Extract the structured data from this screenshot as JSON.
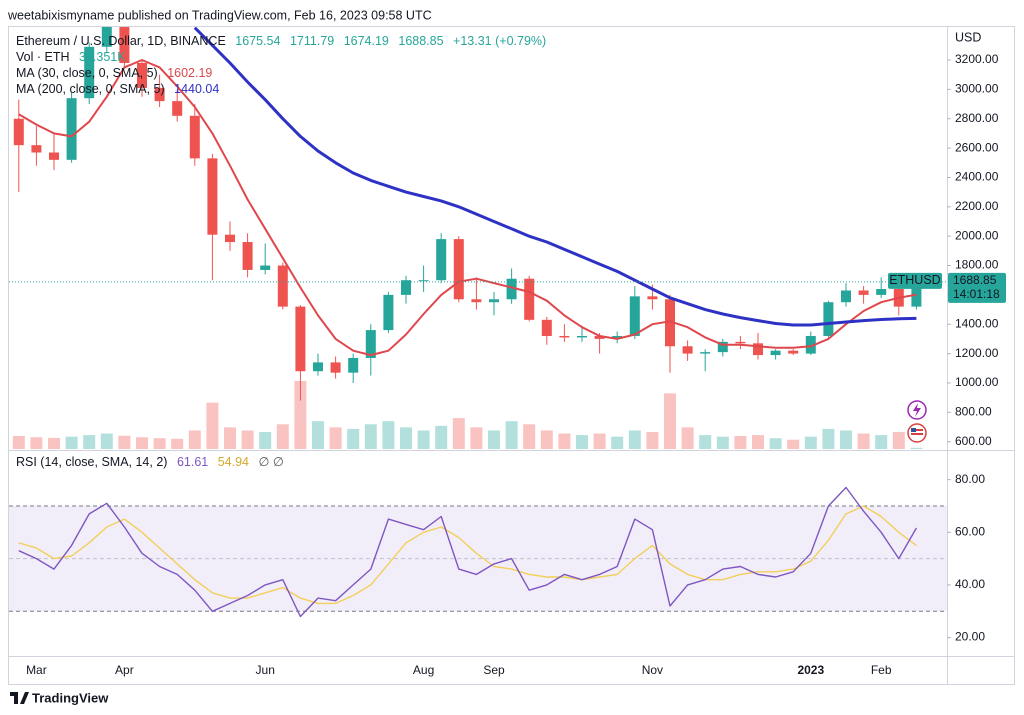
{
  "header": {
    "publisher": "weetabixismyname published on TradingView.com, Feb 16, 2023 09:58 UTC"
  },
  "footer": {
    "brand": "TradingView"
  },
  "chart_data": {
    "type": "candlestick",
    "title": "Ethereum / U.S. Dollar, 1D, BINANCE",
    "quote": {
      "open": 1675.54,
      "high": 1711.79,
      "low": 1674.19,
      "close": 1688.85,
      "change_label": "+13.31 (+0.79%)"
    },
    "axis_unit": "USD",
    "categories": [
      null,
      "Mar",
      null,
      null,
      null,
      null,
      "Apr",
      null,
      null,
      null,
      null,
      null,
      null,
      null,
      "Jun",
      null,
      null,
      null,
      null,
      null,
      null,
      null,
      null,
      "Aug",
      null,
      null,
      null,
      "Sep",
      null,
      null,
      null,
      null,
      null,
      null,
      null,
      null,
      "Nov",
      null,
      null,
      null,
      null,
      null,
      null,
      null,
      null,
      "2023",
      null,
      null,
      null,
      "Feb",
      null,
      null
    ],
    "open": [
      2800,
      2620,
      2570,
      2520,
      2940,
      3290,
      3450,
      3180,
      3010,
      2920,
      2820,
      2530,
      2010,
      1960,
      1770,
      1800,
      1520,
      1080,
      1140,
      1070,
      1170,
      1360,
      1600,
      1700,
      1700,
      1980,
      1570,
      1550,
      1570,
      1710,
      1430,
      1320,
      1310,
      1320,
      1300,
      1320,
      1590,
      1570,
      1250,
      1200,
      1210,
      1280,
      1270,
      1190,
      1220,
      1200,
      1320,
      1550,
      1630,
      1600,
      1640,
      1520
    ],
    "high": [
      2930,
      2750,
      2700,
      2980,
      3320,
      3480,
      3460,
      3200,
      3100,
      3000,
      2900,
      2560,
      2100,
      2020,
      1950,
      1820,
      1530,
      1200,
      1180,
      1200,
      1400,
      1620,
      1730,
      1800,
      2020,
      2000,
      1720,
      1620,
      1780,
      1730,
      1450,
      1400,
      1390,
      1340,
      1350,
      1660,
      1670,
      1600,
      1290,
      1230,
      1300,
      1320,
      1340,
      1230,
      1230,
      1350,
      1560,
      1680,
      1660,
      1720,
      1660,
      1711.79
    ],
    "low": [
      2300,
      2480,
      2450,
      2500,
      2900,
      3250,
      3140,
      2950,
      2880,
      2780,
      2480,
      1700,
      1900,
      1720,
      1740,
      1500,
      880,
      1050,
      1030,
      1000,
      1050,
      1340,
      1540,
      1620,
      1680,
      1550,
      1500,
      1460,
      1540,
      1420,
      1260,
      1280,
      1280,
      1200,
      1270,
      1300,
      1500,
      1070,
      1150,
      1080,
      1180,
      1230,
      1160,
      1160,
      1190,
      1190,
      1310,
      1520,
      1540,
      1580,
      1460,
      1500
    ],
    "close": [
      2620,
      2570,
      2520,
      2940,
      3290,
      3450,
      3180,
      3010,
      2920,
      2820,
      2530,
      2010,
      1960,
      1770,
      1800,
      1520,
      1080,
      1140,
      1070,
      1170,
      1360,
      1600,
      1700,
      1700,
      1980,
      1570,
      1550,
      1570,
      1710,
      1430,
      1320,
      1310,
      1320,
      1300,
      1320,
      1590,
      1570,
      1250,
      1200,
      1210,
      1280,
      1270,
      1190,
      1220,
      1200,
      1320,
      1550,
      1630,
      1600,
      1640,
      1520,
      1688.85
    ],
    "up_color": "#26a69a",
    "down_color": "#ef5350",
    "volume": {
      "name": "Vol · ETH",
      "values": [
        420000,
        380000,
        360000,
        400000,
        450000,
        500000,
        430000,
        380000,
        350000,
        330000,
        600000,
        1500000,
        700000,
        600000,
        550000,
        800000,
        2200000,
        900000,
        700000,
        650000,
        800000,
        900000,
        700000,
        600000,
        750000,
        1000000,
        700000,
        600000,
        900000,
        800000,
        600000,
        500000,
        450000,
        500000,
        400000,
        600000,
        550000,
        1800000,
        700000,
        450000,
        400000,
        420000,
        450000,
        350000,
        300000,
        400000,
        650000,
        600000,
        500000,
        450000,
        550000,
        39351
      ],
      "value_labels": [
        null,
        null,
        null,
        null,
        null,
        null,
        null,
        null,
        null,
        null,
        null,
        null,
        null,
        null,
        null,
        null,
        null,
        null,
        null,
        null,
        null,
        null,
        null,
        null,
        null,
        null,
        null,
        null,
        null,
        null,
        null,
        null,
        null,
        null,
        null,
        null,
        null,
        null,
        null,
        null,
        null,
        null,
        null,
        null,
        null,
        null,
        null,
        null,
        null,
        null,
        null,
        "39.351K"
      ]
    },
    "series": [
      {
        "name": "MA (30, close, 0, SMA, 5)",
        "color": "#e0474c",
        "values": [
          2830,
          2760,
          2700,
          2680,
          2780,
          2950,
          3150,
          3200,
          3150,
          3020,
          2880,
          2700,
          2480,
          2250,
          2050,
          1850,
          1650,
          1460,
          1300,
          1220,
          1190,
          1220,
          1330,
          1470,
          1600,
          1690,
          1710,
          1680,
          1650,
          1620,
          1560,
          1460,
          1380,
          1320,
          1300,
          1330,
          1400,
          1420,
          1380,
          1310,
          1260,
          1260,
          1250,
          1240,
          1240,
          1250,
          1300,
          1400,
          1490,
          1550,
          1580,
          1602.19
        ]
      },
      {
        "name": "MA (200, close, 0, SMA, 5)",
        "color": "#2e32c4",
        "values": [
          null,
          null,
          null,
          null,
          null,
          null,
          null,
          null,
          null,
          null,
          3420,
          3300,
          3180,
          3050,
          2930,
          2800,
          2680,
          2580,
          2500,
          2430,
          2380,
          2340,
          2300,
          2270,
          2240,
          2200,
          2150,
          2100,
          2050,
          2000,
          1960,
          1910,
          1860,
          1810,
          1760,
          1700,
          1640,
          1580,
          1540,
          1500,
          1470,
          1445,
          1425,
          1405,
          1395,
          1395,
          1405,
          1415,
          1425,
          1432,
          1437,
          1440.04
        ]
      }
    ],
    "price_tag": {
      "symbol": "ETHUSD",
      "countdown": "14:01:18"
    },
    "ylim": [
      550,
      3425
    ],
    "yticks": [
      {
        "value": 600,
        "label": "600.00"
      },
      {
        "value": 800,
        "label": "800.00"
      },
      {
        "value": 1000,
        "label": "1000.00"
      },
      {
        "value": 1200,
        "label": "1200.00"
      },
      {
        "value": 1400,
        "label": "1400.00"
      },
      {
        "value": 1600,
        "label": "1600.00"
      },
      {
        "value": 1800,
        "label": "1800.00"
      },
      {
        "value": 2000,
        "label": "2000.00"
      },
      {
        "value": 2200,
        "label": "2200.00"
      },
      {
        "value": 2400,
        "label": "2400.00"
      },
      {
        "value": 2600,
        "label": "2600.00"
      },
      {
        "value": 2800,
        "label": "2800.00"
      },
      {
        "value": 3000,
        "label": "3000.00"
      },
      {
        "value": 3200,
        "label": "3200.00"
      }
    ],
    "grid": false,
    "rsi": {
      "type": "line",
      "title": "RSI (14, close, SMA, 14, 2)",
      "flags": "∅ ∅",
      "series": [
        {
          "color": "#7e57c2",
          "values": [
            53,
            50,
            46,
            55,
            67,
            71,
            62,
            52,
            47,
            44,
            38,
            30,
            33,
            36,
            40,
            42,
            28,
            35,
            34,
            40,
            46,
            65,
            63,
            61,
            66,
            46,
            44,
            48,
            50,
            38,
            40,
            44,
            42,
            44,
            47,
            65,
            61,
            32,
            40,
            42,
            46,
            47,
            44,
            43,
            45,
            52,
            70,
            77,
            68,
            60,
            50,
            61.61
          ]
        },
        {
          "color": "#f2cf5b",
          "values": [
            56,
            54,
            50,
            51,
            56,
            62,
            65,
            60,
            54,
            48,
            42,
            37,
            35,
            35,
            37,
            39,
            35,
            33,
            33,
            36,
            40,
            48,
            56,
            60,
            62,
            58,
            52,
            47,
            46,
            44,
            43,
            43,
            42,
            43,
            44,
            50,
            55,
            48,
            44,
            42,
            42,
            44,
            45,
            45,
            46,
            49,
            57,
            67,
            70,
            66,
            60,
            54.94
          ]
        }
      ],
      "bands": [
        30,
        70
      ],
      "midline": 50,
      "band_color": "#7e57c2",
      "ylim": [
        13,
        90.5
      ],
      "yticks": [
        {
          "value": 20,
          "label": "20.00"
        },
        {
          "value": 40,
          "label": "40.00"
        },
        {
          "value": 60,
          "label": "60.00"
        },
        {
          "value": 80,
          "label": "80.00"
        }
      ]
    }
  }
}
